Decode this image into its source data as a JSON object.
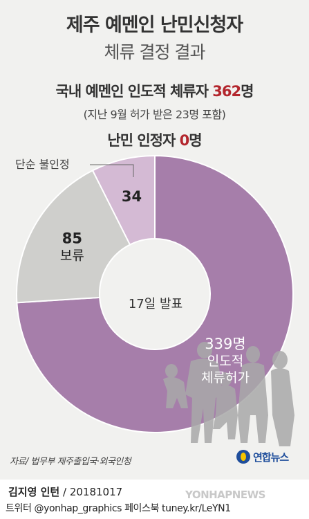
{
  "header": {
    "title": "제주 예멘인 난민신청자",
    "subtitle": "체류 결정 결과"
  },
  "stats": {
    "line1_prefix": "국내 예멘인 인도적 체류자 ",
    "line1_value": "362",
    "line1_unit": "명",
    "note": "(지난 9월 허가 받은 23명 포함)",
    "line2_prefix": "난민 인정자 ",
    "line2_value": "0",
    "line2_unit": "명"
  },
  "chart_data": {
    "type": "pie",
    "subtype": "donut",
    "center_label": "17일 발표",
    "slices": [
      {
        "label_lines": [
          "339명",
          "인도적",
          "체류허가"
        ],
        "value": 339,
        "color": "#a67eaa"
      },
      {
        "label_lines": [
          "85",
          "보류"
        ],
        "value": 85,
        "color": "#cfcfcc"
      },
      {
        "label_lines": [
          "34"
        ],
        "value": 34,
        "color": "#d4bad4"
      }
    ],
    "callout": "단순 불인정"
  },
  "footer": {
    "source": "자료/ 법무부 제주출입국·외국인청",
    "logo_text": "연합뉴스",
    "author": "김지영 인턴",
    "date": "/ 20181017",
    "social": "트위터 @yonhap_graphics  페이스북 tuney.kr/LeYN1",
    "watermark": "YONHAPNEWS"
  },
  "colors": {
    "highlight": "#b3262d",
    "background": "#f1f1ef"
  }
}
